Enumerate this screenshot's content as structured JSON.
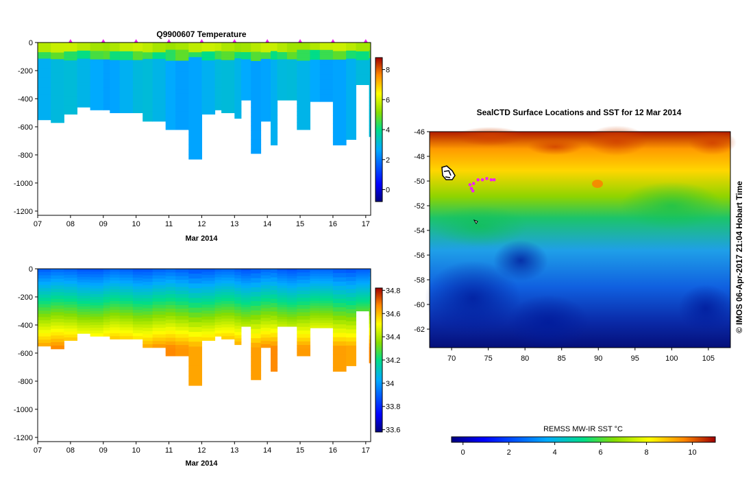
{
  "chart_data": [
    {
      "type": "heatmap",
      "title": "Q9900607  Temperature",
      "xlabel": "Mar 2014",
      "x_ticks": [
        "07",
        "08",
        "09",
        "10",
        "11",
        "12",
        "13",
        "14",
        "15",
        "16",
        "17"
      ],
      "y_ticks": [
        "0",
        "-200",
        "-400",
        "-600",
        "-800",
        "-1000",
        "-1200"
      ],
      "ylim": [
        -1230,
        0
      ],
      "colorbar_ticks": [
        "0",
        "2",
        "4",
        "6",
        "8"
      ],
      "clim": [
        -0.8,
        8.8
      ],
      "profile_times": [
        7.0,
        7.4,
        7.8,
        8.2,
        8.6,
        9.0,
        9.2,
        9.5,
        9.9,
        10.2,
        10.5,
        10.9,
        11.2,
        11.6,
        12.0,
        12.4,
        12.6,
        13.0,
        13.2,
        13.5,
        13.8,
        14.1,
        14.3,
        14.6,
        14.9,
        15.3,
        15.6,
        16.0,
        16.4,
        16.7,
        17.1
      ],
      "profile_max_depth": [
        -550,
        -570,
        -510,
        -460,
        -480,
        -480,
        -500,
        -500,
        -500,
        -560,
        -560,
        -620,
        -620,
        -830,
        -510,
        -480,
        -500,
        -540,
        -410,
        -790,
        -560,
        -730,
        -410,
        -410,
        -620,
        -420,
        -420,
        -730,
        -690,
        -300,
        -670
      ],
      "markers_days": [
        8,
        9,
        10,
        11,
        12,
        13,
        14,
        15,
        16,
        17
      ],
      "surface_temperature": 5.2,
      "deep_temperature": 3.0
    },
    {
      "type": "heatmap",
      "title": "",
      "xlabel": "Mar 2014",
      "x_ticks": [
        "07",
        "08",
        "09",
        "10",
        "11",
        "12",
        "13",
        "14",
        "15",
        "16",
        "17"
      ],
      "y_ticks": [
        "0",
        "-200",
        "-400",
        "-600",
        "-800",
        "-1000",
        "-1200"
      ],
      "ylim": [
        -1230,
        0
      ],
      "colorbar_ticks": [
        "33.6",
        "33.8",
        "34",
        "34.2",
        "34.4",
        "34.6",
        "34.8"
      ],
      "clim": [
        33.58,
        34.82
      ],
      "surface_value": 33.75,
      "deep_value": 34.65
    },
    {
      "type": "heatmap",
      "title": "SealCTD Surface Locations and SST for 12 Mar 2014",
      "x_ticks": [
        "70",
        "75",
        "80",
        "85",
        "90",
        "95",
        "100",
        "105"
      ],
      "y_ticks": [
        "-46",
        "-48",
        "-50",
        "-52",
        "-54",
        "-56",
        "-58",
        "-60",
        "-62"
      ],
      "xlim": [
        67,
        108
      ],
      "ylim": [
        -63.5,
        -46
      ],
      "colorbar_label": "REMSS MW-IR SST °C",
      "colorbar_ticks": [
        "0",
        "2",
        "4",
        "6",
        "8",
        "10"
      ],
      "clim": [
        -0.5,
        11
      ],
      "side_label": "© IMOS 06-Apr-2017 21:04 Hobart Time",
      "track_points": [
        [
          72.5,
          -50.3
        ],
        [
          72.7,
          -50.6
        ],
        [
          73.0,
          -50.2
        ],
        [
          73.6,
          -49.9
        ],
        [
          74.2,
          -49.9
        ],
        [
          74.8,
          -49.8
        ],
        [
          75.4,
          -49.9
        ],
        [
          75.8,
          -49.9
        ],
        [
          72.9,
          -50.8
        ]
      ]
    }
  ]
}
